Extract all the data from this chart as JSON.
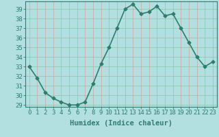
{
  "x": [
    0,
    1,
    2,
    3,
    4,
    5,
    6,
    7,
    8,
    9,
    10,
    11,
    12,
    13,
    14,
    15,
    16,
    17,
    18,
    19,
    20,
    21,
    22,
    23
  ],
  "y": [
    33,
    31.8,
    30.3,
    29.7,
    29.3,
    29.0,
    29.0,
    29.3,
    31.2,
    33.3,
    35.0,
    37.0,
    39.0,
    39.5,
    38.5,
    38.7,
    39.3,
    38.3,
    38.5,
    37.0,
    35.5,
    34.0,
    33.0,
    33.5
  ],
  "xlabel": "Humidex (Indice chaleur)",
  "ylim": [
    28.8,
    39.8
  ],
  "xlim": [
    -0.5,
    23.5
  ],
  "yticks": [
    29,
    30,
    31,
    32,
    33,
    34,
    35,
    36,
    37,
    38,
    39
  ],
  "xticks": [
    0,
    1,
    2,
    3,
    4,
    5,
    6,
    7,
    8,
    9,
    10,
    11,
    12,
    13,
    14,
    15,
    16,
    17,
    18,
    19,
    20,
    21,
    22,
    23
  ],
  "line_color": "#2e7d6e",
  "marker": "D",
  "marker_size": 2.5,
  "bg_color": "#b2e0e0",
  "grid_color": "#d4a0a0",
  "line_width": 1.2,
  "xlabel_fontsize": 7.5,
  "tick_fontsize": 6.5
}
